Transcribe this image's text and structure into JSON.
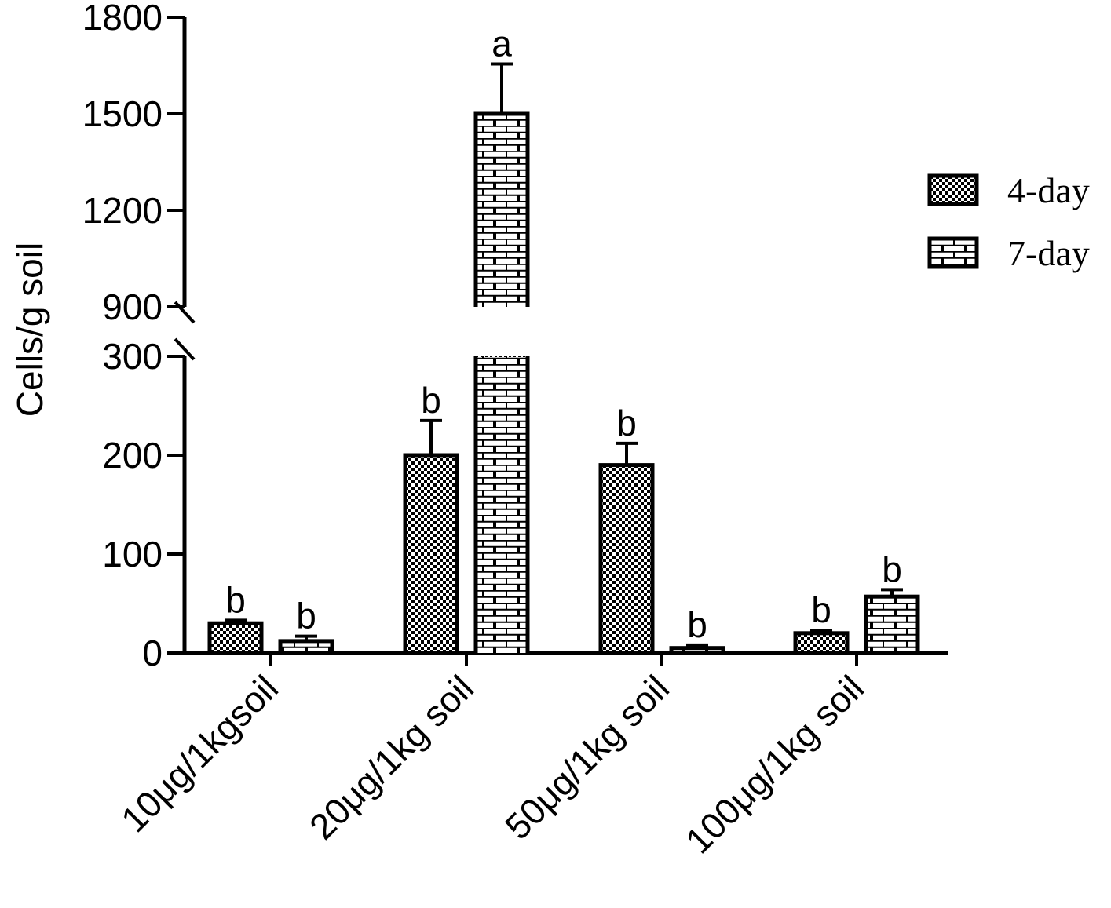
{
  "chart_data": {
    "type": "bar",
    "ylabel": "Cells/g soil",
    "xlabel": "",
    "title": "",
    "y_axis_break": {
      "lower_range": [
        0,
        300
      ],
      "upper_range": [
        900,
        1800
      ],
      "lower_ticks": [
        "0",
        "100",
        "200",
        "300"
      ],
      "upper_ticks": [
        "900",
        "1200",
        "1500",
        "1800"
      ]
    },
    "categories": [
      "10μg/1kgsoil",
      "20μg/1kg soil",
      "50μg/1kg soil",
      "100μg/1kg soil"
    ],
    "series": [
      {
        "name": "4-day",
        "pattern": "checkerboard",
        "values": [
          30,
          200,
          190,
          20
        ],
        "errors": [
          3,
          35,
          22,
          3
        ],
        "letters": [
          "b",
          "b",
          "b",
          "b"
        ]
      },
      {
        "name": "7-day",
        "pattern": "brick",
        "values": [
          12,
          1500,
          5,
          57
        ],
        "errors": [
          5,
          155,
          3,
          7
        ],
        "letters": [
          "b",
          "a",
          "b",
          "b"
        ]
      }
    ],
    "legend": {
      "position": "right"
    },
    "grid": false,
    "colors": {
      "stroke": "#000000",
      "fill": "#ffffff"
    }
  }
}
